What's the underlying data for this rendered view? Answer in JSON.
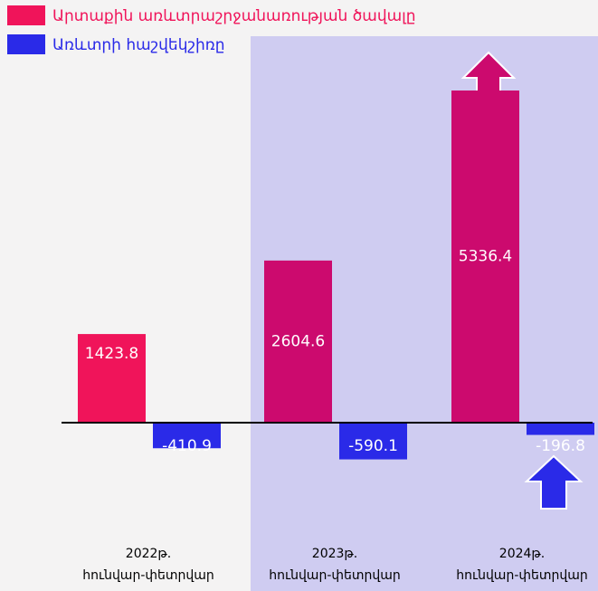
{
  "chart_data": {
    "type": "bar",
    "categories": [
      "2022թ.\nհունվար-փետրվար",
      "2023թ.\nհունվար-փետրվար",
      "2024թ.\nհունվար-փետրվար"
    ],
    "series": [
      {
        "name": "Արտաքին առևտրաշրջանառության ծավալը",
        "color": "#f0145a",
        "values": [
          1423.8,
          2604.6,
          5336.4
        ]
      },
      {
        "name": "Առևտրի հաշվեկշիռը",
        "color": "#2a2ae8",
        "values": [
          -410.9,
          -590.1,
          -196.8
        ]
      }
    ]
  }
}
